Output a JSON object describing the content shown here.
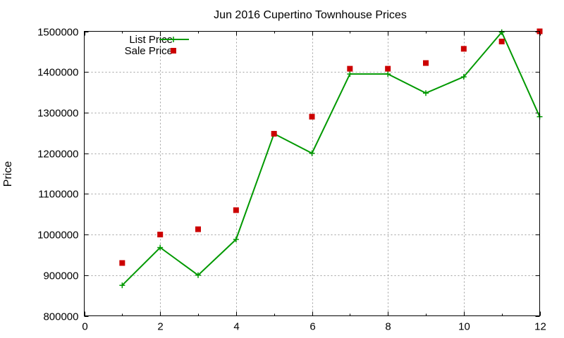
{
  "chart_data": {
    "type": "line",
    "title": "Jun 2016 Cupertino Townhouse Prices",
    "xlabel": "",
    "ylabel": "Price",
    "xlim": [
      0,
      12
    ],
    "ylim": [
      800000,
      1500000
    ],
    "x_ticks": [
      "0",
      "2",
      "4",
      "6",
      "8",
      "10",
      "12"
    ],
    "y_ticks": [
      "800000",
      "900000",
      "1000000",
      "1100000",
      "1200000",
      "1300000",
      "1400000",
      "1500000"
    ],
    "grid": true,
    "legend_position": "top-left",
    "series": [
      {
        "name": "List Price",
        "style": "line-with-plus-markers",
        "color": "#009900",
        "x": [
          1,
          2,
          3,
          4,
          5,
          6,
          7,
          8,
          9,
          10,
          11,
          12
        ],
        "values": [
          875000,
          968000,
          900000,
          988000,
          1248000,
          1200000,
          1395000,
          1395000,
          1348000,
          1388000,
          1498000,
          1290000
        ]
      },
      {
        "name": "Sale Price",
        "style": "square-markers",
        "color": "#cc0000",
        "x": [
          1,
          2,
          3,
          4,
          5,
          6,
          7,
          8,
          9,
          10,
          11,
          12
        ],
        "values": [
          930000,
          1000000,
          1013000,
          1060000,
          1248000,
          1290000,
          1408000,
          1408000,
          1422000,
          1457000,
          1475000,
          1500000
        ]
      }
    ]
  }
}
